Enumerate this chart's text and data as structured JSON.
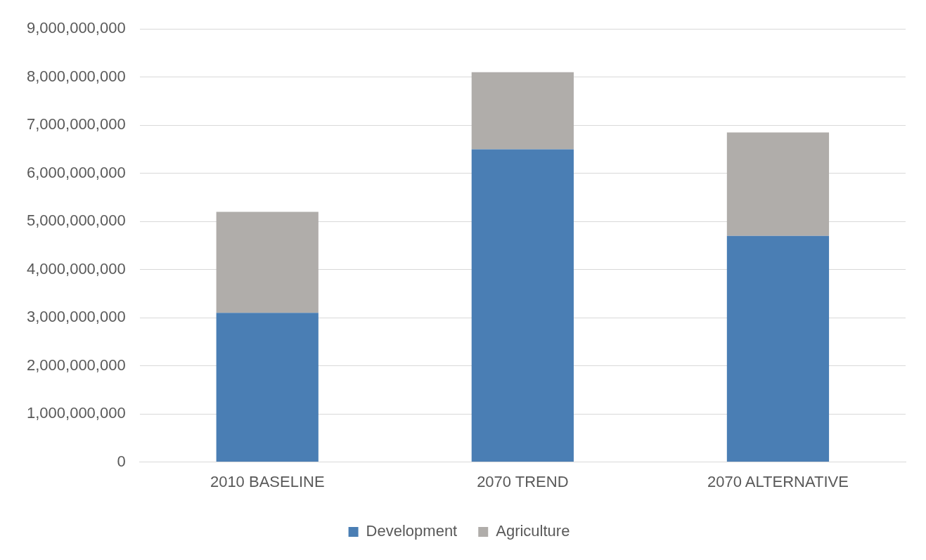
{
  "chart_data": {
    "type": "bar",
    "stacked": true,
    "categories": [
      "2010 BASELINE",
      "2070 TREND",
      "2070 ALTERNATIVE"
    ],
    "series": [
      {
        "name": "Development",
        "color": "#4a7eb4",
        "values": [
          3100000000,
          6500000000,
          4700000000
        ]
      },
      {
        "name": "Agriculture",
        "color": "#b0adaa",
        "values": [
          2100000000,
          1600000000,
          2150000000
        ]
      }
    ],
    "ylim": [
      0,
      9000000000
    ],
    "yticks": [
      0,
      {
        "value": 1000000000,
        "label": "1,000,000,000"
      },
      {
        "value": 2000000000,
        "label": "2,000,000,000"
      },
      {
        "value": 3000000000,
        "label": "3,000,000,000"
      },
      {
        "value": 4000000000,
        "label": "4,000,000,000"
      },
      {
        "value": 5000000000,
        "label": "5,000,000,000"
      },
      {
        "value": 6000000000,
        "label": "6,000,000,000"
      },
      {
        "value": 7000000000,
        "label": "7,000,000,000"
      },
      {
        "value": 8000000000,
        "label": "8,000,000,000"
      },
      {
        "value": 9000000000,
        "label": "9,000,000,000"
      }
    ],
    "grid": "y",
    "legend": "bottom"
  }
}
